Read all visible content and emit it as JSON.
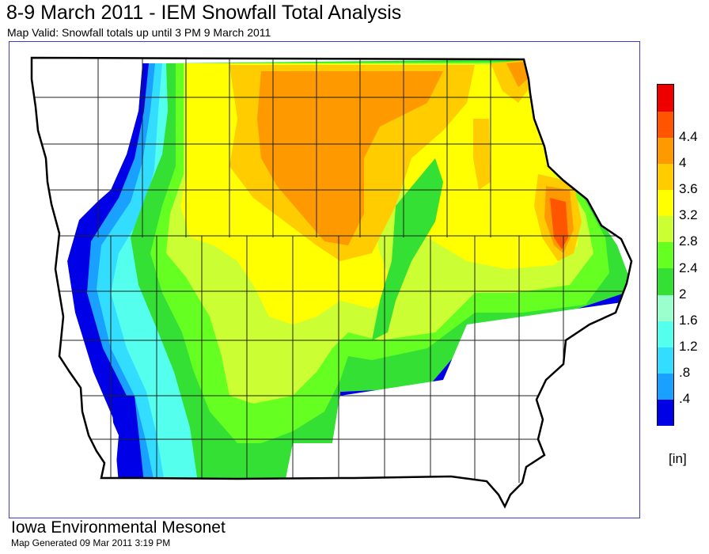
{
  "header": {
    "title": "8-9 March 2011 - IEM Snowfall Total Analysis",
    "subtitle": "Map Valid: Snowfall totals up until 3 PM 9 March 2011"
  },
  "legend": {
    "unit": "[in]",
    "bins": [
      {
        "label": "",
        "color": "#0000e6"
      },
      {
        "label": ".4",
        "color": "#1aa0ff"
      },
      {
        "label": ".8",
        "color": "#33ddff"
      },
      {
        "label": "1.2",
        "color": "#55ffee"
      },
      {
        "label": "1.6",
        "color": "#99ffcc"
      },
      {
        "label": "2",
        "color": "#33e033"
      },
      {
        "label": "2.4",
        "color": "#66ff22"
      },
      {
        "label": "2.8",
        "color": "#ccff33"
      },
      {
        "label": "3.2",
        "color": "#ffff00"
      },
      {
        "label": "3.6",
        "color": "#ffcc00"
      },
      {
        "label": "4",
        "color": "#ff9900"
      },
      {
        "label": "4.4",
        "color": "#ff5500"
      },
      {
        "label": "",
        "color": "#ee0000"
      }
    ]
  },
  "footer": {
    "org": "Iowa Environmental Mesonet",
    "generated": "Map Generated 09 Mar 2011 3:19 PM"
  }
}
